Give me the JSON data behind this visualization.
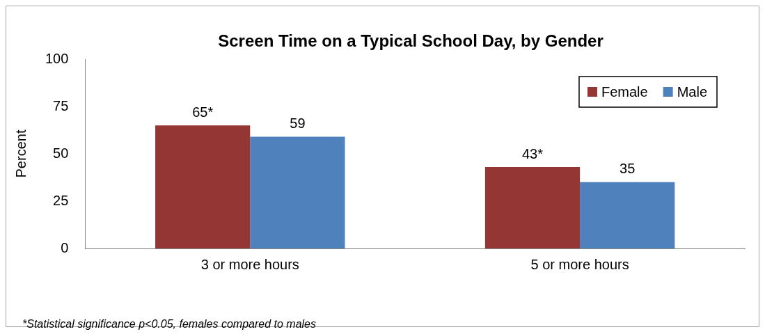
{
  "chart_data": {
    "type": "bar",
    "title": "Screen Time on a Typical School Day, by Gender",
    "ylabel": "Percent",
    "categories": [
      "3 or more hours",
      "5 or more hours"
    ],
    "series": [
      {
        "name": "Female",
        "color": "#943634",
        "values": [
          65,
          43
        ],
        "value_labels": [
          "65*",
          "43*"
        ]
      },
      {
        "name": "Male",
        "color": "#4f81bd",
        "values": [
          59,
          35
        ],
        "value_labels": [
          "59",
          "35"
        ]
      }
    ],
    "ylim": [
      0,
      100
    ],
    "yticks": [
      0,
      25,
      50,
      75,
      100
    ],
    "grid": false,
    "legend": "top right",
    "annotations": [
      "*Statistical significance p<0.05, females compared to males"
    ]
  }
}
